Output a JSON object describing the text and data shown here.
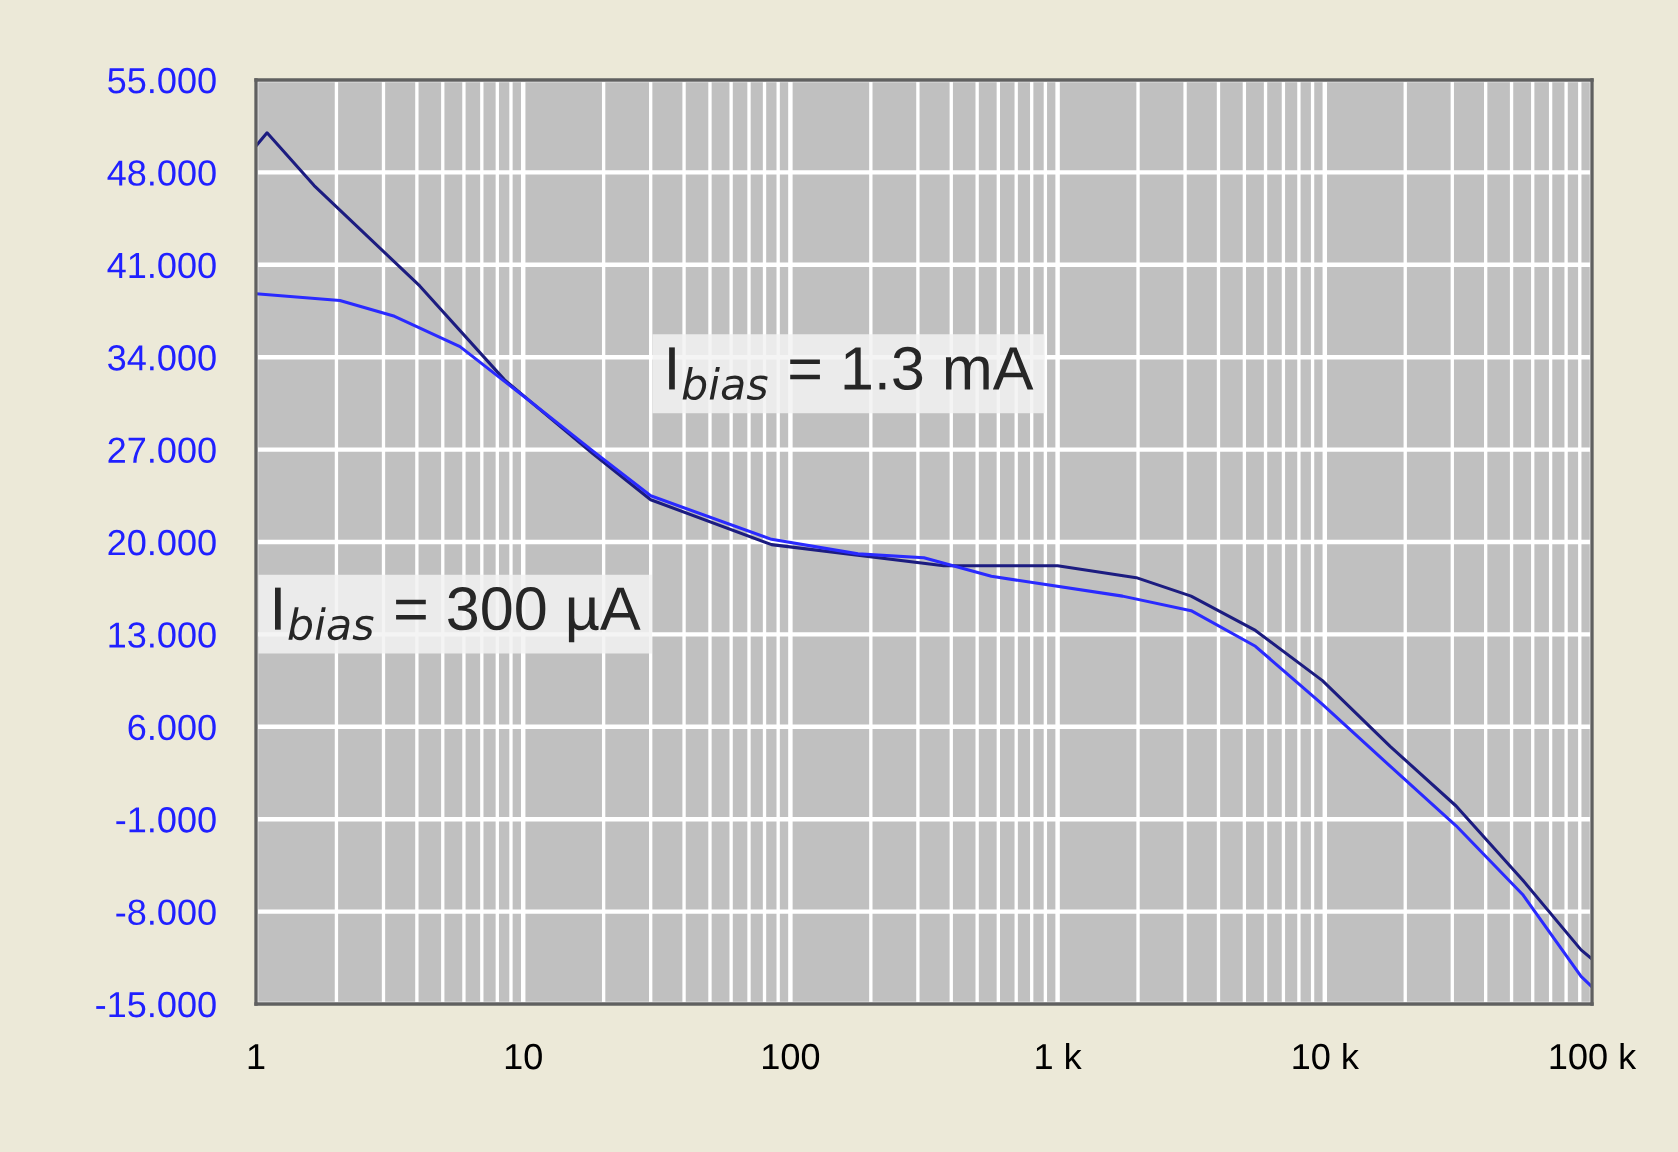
{
  "chart_data": {
    "type": "line",
    "log": "x",
    "grid": true,
    "line_style": "solid",
    "marker": "none",
    "xlim": [
      1,
      100000
    ],
    "ylim": [
      -15,
      55
    ],
    "xticks": [
      1,
      10,
      100,
      {
        "value": 1000,
        "label": "1 k"
      },
      {
        "value": 10000,
        "label": "10 k"
      },
      {
        "value": 100000,
        "label": "100 k"
      }
    ],
    "yticks": [
      {
        "value": 55,
        "label": "55.000"
      },
      {
        "value": 48,
        "label": "48.000"
      },
      {
        "value": 41,
        "label": "41.000"
      },
      {
        "value": 34,
        "label": "34.000"
      },
      {
        "value": 27,
        "label": "27.000"
      },
      {
        "value": 20,
        "label": "20.000"
      },
      {
        "value": 13,
        "label": "13.000"
      },
      {
        "value": 6,
        "label": "6.000"
      },
      {
        "value": -1,
        "label": "-1.000"
      },
      {
        "value": -8,
        "label": "-8.000"
      },
      {
        "value": -15,
        "label": "-15.000"
      }
    ],
    "series": [
      {
        "color": "#1c1c80",
        "x": [
          1,
          1.1,
          1.65,
          4.1,
          8.5,
          18.2,
          30,
          85,
          375,
          1000,
          1970,
          3160,
          5500,
          9800,
          17600,
          31000,
          55000,
          91000,
          100000
        ],
        "values": [
          50,
          51,
          47,
          39.4,
          32.3,
          26.7,
          23.2,
          19.8,
          18.2,
          18.2,
          17.3,
          15.9,
          13.3,
          9.5,
          4.5,
          0,
          -5.6,
          -10.9,
          -11.6
        ]
      },
      {
        "color": "#2a2aff",
        "x": [
          1,
          2.06,
          3.3,
          5.8,
          10.1,
          18.2,
          30,
          85,
          179,
          316,
          565,
          1750,
          3160,
          5500,
          9800,
          17600,
          31000,
          55000,
          91000,
          100000
        ],
        "values": [
          38.8,
          38.3,
          37.1,
          34.8,
          31,
          26.9,
          23.5,
          20.2,
          19.1,
          18.8,
          17.4,
          15.9,
          14.8,
          12.1,
          7.7,
          3.0,
          -1.5,
          -6.7,
          -12.9,
          -13.7
        ]
      }
    ],
    "annotations": [
      "I$_{bias}$ = 1.3 mA",
      "I$_{bias}$ = 300 µA"
    ]
  }
}
